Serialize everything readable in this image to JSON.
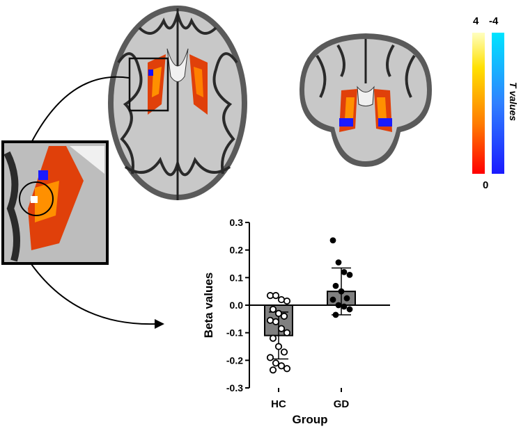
{
  "colorbar": {
    "positive_max": "4",
    "negative_max": "-4",
    "min": "0",
    "title": "T values",
    "positive_colors": [
      "#ff0000",
      "#ff7a00",
      "#ffe000",
      "#ffffc0"
    ],
    "negative_colors": [
      "#1a1aff",
      "#2f80ff",
      "#00e5ff"
    ]
  },
  "brain_images": [
    {
      "view": "axial",
      "structure": "brain slice with striatal activation"
    },
    {
      "view": "coronal",
      "structure": "brain slice with striatal activation"
    },
    {
      "view": "zoom",
      "structure": "enlarged putamen region with circled cluster"
    }
  ],
  "chart_data": {
    "type": "bar",
    "categories": [
      "HC",
      "GD"
    ],
    "values": [
      -0.11,
      0.05
    ],
    "error_sd": [
      0.085,
      0.085
    ],
    "points": {
      "HC": [
        0.035,
        0.035,
        0.02,
        0.015,
        -0.015,
        -0.03,
        -0.04,
        -0.055,
        -0.06,
        -0.085,
        -0.1,
        -0.12,
        -0.15,
        -0.17,
        -0.19,
        -0.21,
        -0.22,
        -0.23,
        -0.235
      ],
      "GD": [
        0.235,
        0.155,
        0.12,
        0.11,
        0.07,
        0.05,
        0.025,
        0.02,
        0.0,
        -0.005,
        -0.015,
        -0.035
      ]
    },
    "xlabel": "Group",
    "ylabel": "Beta values",
    "ylim": [
      -0.3,
      0.3
    ],
    "yticks": [
      "0.3",
      "0.2",
      "0.1",
      "0.0",
      "-0.1",
      "-0.2",
      "-0.3"
    ],
    "bar_color": "#808080",
    "HC_marker": "open circle",
    "GD_marker": "filled circle"
  }
}
